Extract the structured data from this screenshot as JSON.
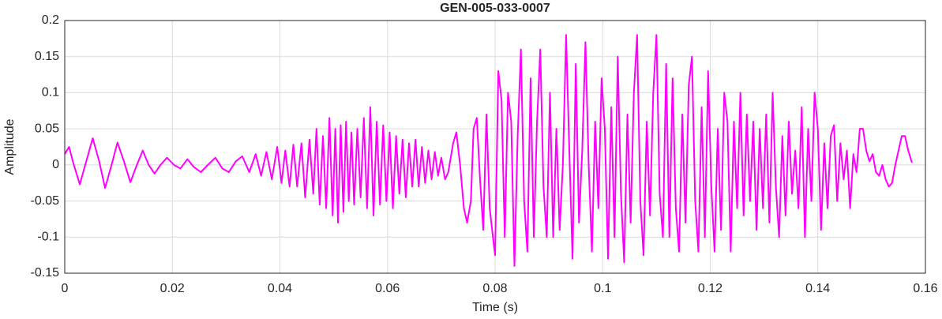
{
  "chart_data": {
    "type": "line",
    "title": "GEN-005-033-0007",
    "x_label": "Time (s)",
    "y_label": "Amplitude",
    "xlim": [
      0,
      0.16
    ],
    "xticks": [
      0,
      0.02,
      0.04,
      0.06,
      0.08,
      0.1,
      0.12,
      0.14,
      0.16
    ],
    "ylim": [
      -0.15,
      0.2
    ],
    "yticks": [
      -0.15,
      -0.1,
      -0.05,
      0,
      0.05,
      0.1,
      0.15,
      0.2
    ],
    "grid": true,
    "x": [
      0,
      0.0008,
      0.0015,
      0.0028,
      0.004,
      0.0052,
      0.0064,
      0.0075,
      0.0087,
      0.0098,
      0.011,
      0.0122,
      0.0133,
      0.0145,
      0.0156,
      0.0167,
      0.0178,
      0.019,
      0.0203,
      0.0215,
      0.0228,
      0.024,
      0.0253,
      0.0266,
      0.028,
      0.0293,
      0.0305,
      0.0318,
      0.033,
      0.0343,
      0.0355,
      0.0365,
      0.0375,
      0.0385,
      0.0395,
      0.0403,
      0.041,
      0.0418,
      0.0425,
      0.0432,
      0.044,
      0.0447,
      0.0455,
      0.0462,
      0.0468,
      0.0474,
      0.048,
      0.0486,
      0.0492,
      0.0498,
      0.0503,
      0.0508,
      0.0513,
      0.0518,
      0.0523,
      0.0528,
      0.0533,
      0.0538,
      0.0544,
      0.055,
      0.0556,
      0.0562,
      0.0568,
      0.0574,
      0.058,
      0.0586,
      0.0592,
      0.0598,
      0.0604,
      0.061,
      0.0616,
      0.0622,
      0.0628,
      0.0634,
      0.064,
      0.0646,
      0.0652,
      0.0658,
      0.0664,
      0.067,
      0.0676,
      0.0682,
      0.0688,
      0.0694,
      0.07,
      0.0707,
      0.0713,
      0.0722,
      0.0728,
      0.0735,
      0.0742,
      0.0748,
      0.0755,
      0.076,
      0.0766,
      0.0772,
      0.0778,
      0.0784,
      0.079,
      0.0796,
      0.08,
      0.0806,
      0.0812,
      0.0818,
      0.0824,
      0.083,
      0.0836,
      0.0842,
      0.0848,
      0.0854,
      0.086,
      0.0866,
      0.0872,
      0.0878,
      0.0884,
      0.089,
      0.0896,
      0.0902,
      0.0908,
      0.0914,
      0.092,
      0.0926,
      0.0932,
      0.0938,
      0.0944,
      0.095,
      0.0956,
      0.0962,
      0.0968,
      0.0974,
      0.098,
      0.0986,
      0.0992,
      0.0998,
      0.1004,
      0.101,
      0.1016,
      0.1022,
      0.1028,
      0.1034,
      0.104,
      0.1046,
      0.1052,
      0.1058,
      0.1064,
      0.107,
      0.1076,
      0.1082,
      0.1088,
      0.1094,
      0.11,
      0.1106,
      0.1112,
      0.1118,
      0.1124,
      0.113,
      0.1136,
      0.1142,
      0.1148,
      0.1154,
      0.116,
      0.1166,
      0.1172,
      0.1178,
      0.1184,
      0.119,
      0.1196,
      0.1202,
      0.1208,
      0.1214,
      0.122,
      0.1226,
      0.1232,
      0.1238,
      0.1244,
      0.125,
      0.1256,
      0.1262,
      0.1268,
      0.1274,
      0.128,
      0.1286,
      0.1292,
      0.1298,
      0.1304,
      0.131,
      0.1316,
      0.1322,
      0.1328,
      0.1334,
      0.134,
      0.1346,
      0.1352,
      0.1358,
      0.1364,
      0.137,
      0.1376,
      0.1382,
      0.1388,
      0.1394,
      0.14,
      0.1406,
      0.1412,
      0.1418,
      0.1424,
      0.143,
      0.1436,
      0.1442,
      0.1448,
      0.1454,
      0.146,
      0.1466,
      0.1472,
      0.1478,
      0.1484,
      0.149,
      0.1496,
      0.1502,
      0.1508,
      0.1514,
      0.152,
      0.1526,
      0.1532,
      0.1538,
      0.1544,
      0.155,
      0.1556,
      0.1562,
      0.1568,
      0.1575
    ],
    "series": [
      {
        "color": "#ff00ff",
        "values": [
          0.015,
          0.025,
          0.005,
          -0.027,
          0.005,
          0.037,
          0.005,
          -0.032,
          0.0,
          0.031,
          0.005,
          -0.024,
          -0.002,
          0.02,
          0.0,
          -0.012,
          0.0,
          0.01,
          0.0,
          -0.005,
          0.008,
          -0.003,
          -0.01,
          0.0,
          0.01,
          -0.005,
          -0.01,
          0.005,
          0.012,
          -0.01,
          0.015,
          -0.015,
          0.018,
          -0.02,
          0.025,
          -0.025,
          0.02,
          -0.03,
          0.028,
          -0.03,
          0.03,
          -0.045,
          0.035,
          -0.04,
          0.05,
          -0.055,
          0.04,
          -0.06,
          0.065,
          -0.07,
          0.05,
          -0.08,
          0.055,
          -0.065,
          0.06,
          -0.05,
          0.045,
          -0.055,
          0.05,
          -0.045,
          0.065,
          -0.06,
          0.08,
          -0.07,
          0.06,
          -0.055,
          0.055,
          -0.05,
          0.045,
          -0.06,
          0.04,
          -0.04,
          0.035,
          -0.045,
          0.03,
          -0.03,
          0.035,
          -0.03,
          0.025,
          -0.025,
          0.02,
          -0.02,
          0.018,
          -0.015,
          0.01,
          -0.02,
          -0.01,
          0.03,
          0.045,
          0.0,
          -0.06,
          -0.08,
          -0.05,
          0.05,
          0.065,
          -0.02,
          -0.09,
          0.07,
          -0.06,
          -0.1,
          -0.125,
          0.13,
          0.09,
          -0.1,
          0.1,
          0.06,
          -0.14,
          0.04,
          0.16,
          -0.05,
          -0.12,
          0.12,
          -0.1,
          0.06,
          0.16,
          -0.03,
          -0.1,
          0.1,
          -0.1,
          0.05,
          -0.09,
          0.0,
          0.18,
          0.02,
          -0.13,
          0.14,
          -0.08,
          0.02,
          0.17,
          0.0,
          -0.12,
          0.06,
          -0.06,
          0.12,
          0.05,
          -0.13,
          0.08,
          -0.1,
          0.15,
          -0.04,
          -0.135,
          0.07,
          -0.08,
          0.1,
          0.18,
          -0.05,
          -0.125,
          0.06,
          -0.07,
          0.1,
          0.18,
          -0.04,
          -0.1,
          0.14,
          -0.1,
          0.12,
          -0.06,
          -0.12,
          0.07,
          -0.08,
          0.11,
          0.15,
          -0.05,
          -0.12,
          0.08,
          -0.1,
          0.13,
          -0.03,
          -0.12,
          0.05,
          -0.09,
          0.1,
          0.06,
          -0.12,
          0.06,
          -0.06,
          0.1,
          -0.07,
          0.07,
          -0.05,
          0.06,
          -0.09,
          0.05,
          -0.06,
          0.07,
          -0.08,
          0.1,
          -0.03,
          -0.1,
          0.04,
          -0.07,
          0.06,
          -0.04,
          0.02,
          -0.06,
          0.08,
          -0.1,
          0.05,
          -0.05,
          0.1,
          0.05,
          -0.09,
          0.03,
          -0.06,
          0.04,
          0.055,
          -0.05,
          0.03,
          -0.02,
          0.02,
          -0.06,
          0.015,
          -0.01,
          0.05,
          0.05,
          0.02,
          0.005,
          0.015,
          -0.01,
          -0.015,
          0.0,
          -0.02,
          -0.03,
          -0.025,
          0.0,
          0.02,
          0.04,
          0.04,
          0.02,
          0.003
        ]
      }
    ]
  }
}
